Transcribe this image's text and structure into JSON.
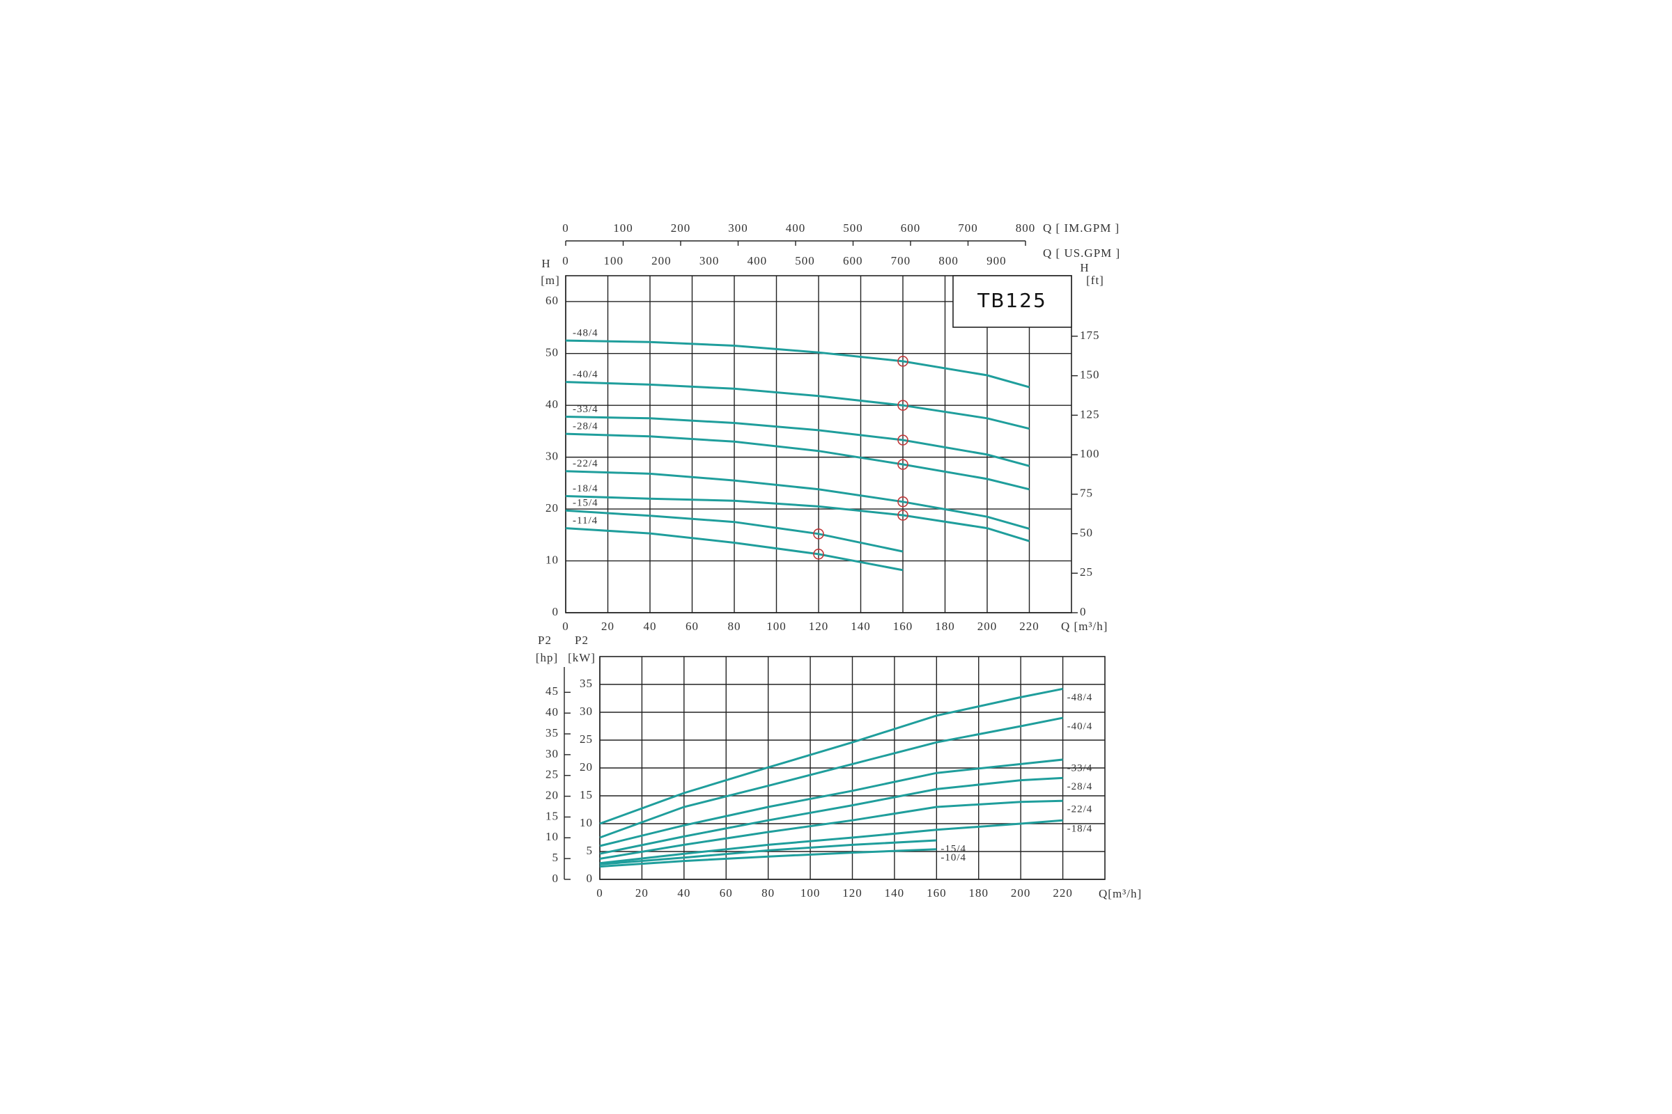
{
  "chart_data": [
    {
      "type": "line",
      "title": "TB125",
      "color": "#1f9e9c",
      "xlabel": "Q [m³/h]",
      "ylabel": "H",
      "yunit": "[m]",
      "y2label": "H",
      "y2unit": "[ft]",
      "xlim": [
        0,
        240
      ],
      "xticks": [
        0,
        20,
        40,
        60,
        80,
        100,
        120,
        140,
        160,
        180,
        200,
        220
      ],
      "ylim": [
        0,
        65
      ],
      "yticks": [
        0,
        10,
        20,
        30,
        40,
        50,
        60
      ],
      "y2lim": [
        0,
        213.3
      ],
      "y2ticks": [
        0,
        25,
        50,
        75,
        100,
        125,
        150,
        175
      ],
      "y2_side": "right",
      "top_axes": [
        {
          "label": "Q [ IM.GPM ]",
          "lim": [
            0,
            880
          ],
          "ticks": [
            0,
            100,
            200,
            300,
            400,
            500,
            600,
            700,
            800
          ]
        },
        {
          "label": "Q [ US.GPM ]",
          "lim": [
            0,
            1056.7
          ],
          "ticks": [
            0,
            100,
            200,
            300,
            400,
            500,
            600,
            700,
            800,
            900
          ]
        }
      ],
      "label_position": "start",
      "grid": true,
      "series": [
        {
          "name": "-48/4",
          "x": [
            0,
            40,
            80,
            120,
            160,
            200,
            220
          ],
          "values": [
            52.5,
            52.2,
            51.5,
            50.2,
            48.5,
            45.8,
            43.5
          ]
        },
        {
          "name": "-40/4",
          "x": [
            0,
            40,
            80,
            120,
            160,
            200,
            220
          ],
          "values": [
            44.5,
            44.0,
            43.2,
            41.8,
            40.0,
            37.5,
            35.5
          ]
        },
        {
          "name": "-33/4",
          "x": [
            0,
            40,
            80,
            120,
            160,
            200,
            220
          ],
          "values": [
            37.8,
            37.5,
            36.6,
            35.2,
            33.3,
            30.5,
            28.3
          ]
        },
        {
          "name": "-28/4",
          "x": [
            0,
            40,
            80,
            120,
            160,
            200,
            220
          ],
          "values": [
            34.5,
            34.0,
            33.0,
            31.2,
            28.6,
            25.8,
            23.8
          ]
        },
        {
          "name": "-22/4",
          "x": [
            0,
            40,
            80,
            120,
            160,
            200,
            220
          ],
          "values": [
            27.3,
            26.8,
            25.5,
            23.8,
            21.4,
            18.5,
            16.2
          ]
        },
        {
          "name": "-18/4",
          "x": [
            0,
            40,
            80,
            120,
            160,
            200,
            220
          ],
          "values": [
            22.5,
            22.0,
            21.6,
            20.5,
            18.8,
            16.3,
            13.8
          ]
        },
        {
          "name": "-15/4",
          "x": [
            0,
            40,
            80,
            120,
            160
          ],
          "values": [
            19.7,
            18.7,
            17.5,
            15.2,
            11.8
          ]
        },
        {
          "name": "-11/4",
          "x": [
            0,
            40,
            80,
            120,
            160
          ],
          "values": [
            16.3,
            15.3,
            13.5,
            11.3,
            8.2
          ]
        }
      ],
      "rated_points": {
        "x": [
          160,
          160,
          160,
          160,
          160,
          160,
          120,
          120
        ],
        "y": [
          48.5,
          40.0,
          33.3,
          28.6,
          21.4,
          18.8,
          15.2,
          11.3
        ]
      }
    },
    {
      "type": "line",
      "color": "#1f9e9c",
      "xlabel": "Q[m³/h]",
      "ylabel": "P2",
      "yunit": "[kW]",
      "y2label": "P2",
      "y2unit": "[hp]",
      "xlim": [
        0,
        240
      ],
      "xticks": [
        0,
        20,
        40,
        60,
        80,
        100,
        120,
        140,
        160,
        180,
        200,
        220
      ],
      "ylim": [
        0,
        40
      ],
      "yticks": [
        0,
        5,
        10,
        15,
        20,
        25,
        30,
        35
      ],
      "y2lim": [
        0,
        53.6
      ],
      "y2ticks": [
        0,
        5,
        10,
        15,
        20,
        25,
        30,
        35,
        40,
        45
      ],
      "y2_side": "left",
      "label_position": "end",
      "grid": true,
      "series": [
        {
          "name": "-48/4",
          "x": [
            0,
            40,
            80,
            120,
            160,
            200,
            220
          ],
          "values": [
            10.0,
            15.5,
            20.1,
            24.6,
            29.4,
            32.7,
            34.2
          ]
        },
        {
          "name": "-40/4",
          "x": [
            0,
            40,
            80,
            120,
            160,
            200,
            220
          ],
          "values": [
            7.5,
            13.0,
            16.8,
            20.7,
            24.6,
            27.5,
            29.0
          ]
        },
        {
          "name": "-33/4",
          "x": [
            0,
            40,
            80,
            120,
            160,
            200,
            220
          ],
          "values": [
            6.0,
            9.7,
            13.0,
            15.9,
            19.1,
            20.7,
            21.5
          ]
        },
        {
          "name": "-28/4",
          "x": [
            0,
            40,
            80,
            120,
            160,
            200,
            220
          ],
          "values": [
            4.6,
            7.7,
            10.6,
            13.3,
            16.2,
            17.8,
            18.2
          ]
        },
        {
          "name": "-22/4",
          "x": [
            0,
            40,
            80,
            120,
            160,
            200,
            220
          ],
          "values": [
            3.7,
            6.2,
            8.5,
            10.6,
            13.0,
            13.9,
            14.1
          ]
        },
        {
          "name": "-18/4",
          "x": [
            0,
            40,
            80,
            120,
            160,
            200,
            220
          ],
          "values": [
            2.9,
            4.6,
            6.2,
            7.5,
            8.9,
            10.0,
            10.6
          ]
        },
        {
          "name": "-15/4",
          "x": [
            0,
            40,
            80,
            120,
            160
          ],
          "values": [
            2.7,
            3.9,
            5.2,
            6.2,
            7.0
          ]
        },
        {
          "name": "-10/4",
          "x": [
            0,
            40,
            80,
            120,
            160
          ],
          "values": [
            2.3,
            3.3,
            4.1,
            4.8,
            5.4
          ]
        }
      ]
    }
  ]
}
